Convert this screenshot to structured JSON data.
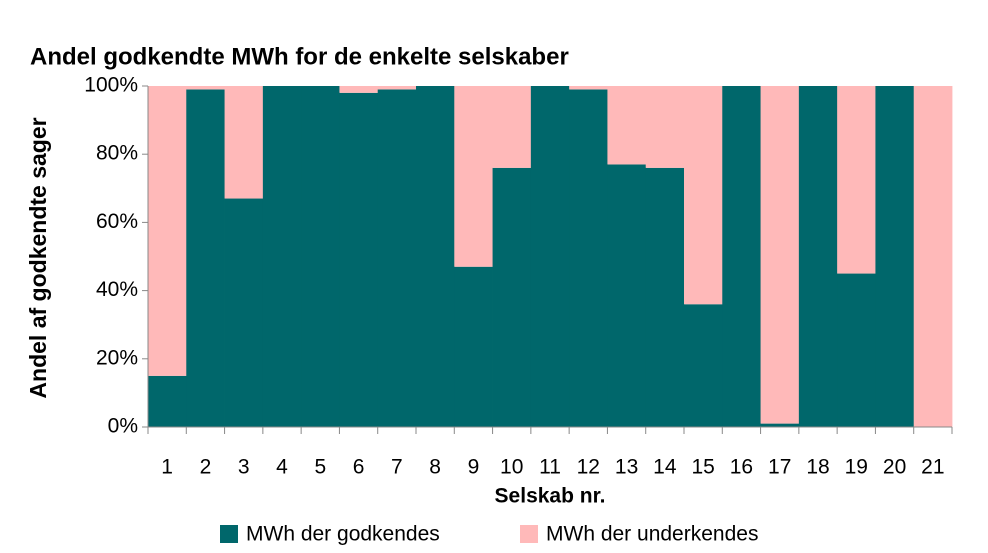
{
  "chart_data": {
    "type": "stacked_bar",
    "title": "Andel godkendte MWh for de enkelte selskaber",
    "y_label": "Andel af godkendte sager",
    "x_label": "Selskab nr.",
    "categories": [
      "1",
      "2",
      "3",
      "4",
      "5",
      "6",
      "7",
      "8",
      "9",
      "10",
      "11",
      "12",
      "13",
      "14",
      "15",
      "16",
      "17",
      "18",
      "19",
      "20",
      "21"
    ],
    "series": [
      {
        "name": "MWh der godkendes",
        "color": "#00676b",
        "values": [
          15,
          99,
          67,
          100,
          100,
          98,
          99,
          100,
          47,
          76,
          100,
          99,
          77,
          76,
          36,
          100,
          1,
          100,
          45,
          100,
          0
        ]
      },
      {
        "name": "MWh der underkendes",
        "color": "#ffb9b9",
        "values": [
          85,
          1,
          33,
          0,
          0,
          2,
          1,
          0,
          53,
          24,
          0,
          1,
          23,
          24,
          64,
          0,
          99,
          0,
          55,
          0,
          100
        ]
      }
    ],
    "ylim": [
      0,
      100
    ],
    "yticks": [
      {
        "value": 0,
        "label": "0%"
      },
      {
        "value": 20,
        "label": "20%"
      },
      {
        "value": 40,
        "label": "40%"
      },
      {
        "value": 60,
        "label": "60%"
      },
      {
        "value": 80,
        "label": "80%"
      },
      {
        "value": 100,
        "label": "100%"
      }
    ],
    "legend": "bottom"
  }
}
